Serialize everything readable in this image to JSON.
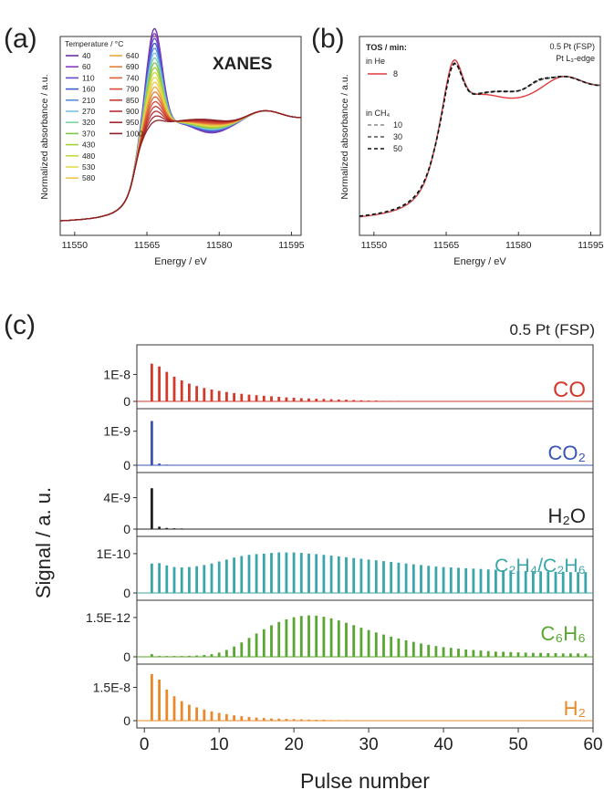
{
  "chart_data": [
    {
      "panel_label": "(a)",
      "type": "line",
      "title": "XANES",
      "xlabel": "Energy / eV",
      "ylabel": "Normalized absorbance / a.u.",
      "xlim": [
        11547,
        11597
      ],
      "x_ticks": [
        11550,
        11565,
        11580,
        11595
      ],
      "grid": false,
      "legend_title": "Temperature / °C",
      "legend_placement": "top-left",
      "series": [
        {
          "name": "40",
          "color": "#6b2fa3"
        },
        {
          "name": "60",
          "color": "#8a3cc4"
        },
        {
          "name": "110",
          "color": "#5b4fd1"
        },
        {
          "name": "160",
          "color": "#3e5cc9"
        },
        {
          "name": "210",
          "color": "#5a8fe0"
        },
        {
          "name": "270",
          "color": "#7fc0e6"
        },
        {
          "name": "320",
          "color": "#7ed2a6"
        },
        {
          "name": "370",
          "color": "#84c44a"
        },
        {
          "name": "430",
          "color": "#a6cf3e"
        },
        {
          "name": "480",
          "color": "#c6d93f"
        },
        {
          "name": "530",
          "color": "#e2dc4a"
        },
        {
          "name": "580",
          "color": "#f0c84c"
        },
        {
          "name": "640",
          "color": "#e8a83e"
        },
        {
          "name": "690",
          "color": "#e2803a"
        },
        {
          "name": "740",
          "color": "#dc6236"
        },
        {
          "name": "790",
          "color": "#d64a35"
        },
        {
          "name": "850",
          "color": "#c93a30"
        },
        {
          "name": "900",
          "color": "#b83030"
        },
        {
          "name": "950",
          "color": "#a2282a"
        },
        {
          "name": "1000",
          "color": "#8a2024"
        }
      ]
    },
    {
      "panel_label": "(b)",
      "type": "line",
      "xlabel": "Energy / eV",
      "ylabel": "Normalized absorbance / a.u.",
      "xlim": [
        11547,
        11597
      ],
      "x_ticks": [
        11550,
        11565,
        11580,
        11595
      ],
      "grid": false,
      "legend_title": "TOS / min:",
      "legend_group1": "in He",
      "legend_group2": "in CH₄",
      "annotation_line1": "0.5 Pt (FSP)",
      "annotation_line2": "Pt L₃-edge",
      "series": [
        {
          "name": "8",
          "color": "#e0393e",
          "dash": "solid"
        },
        {
          "name": "10",
          "color": "#888888",
          "dash": "dashed"
        },
        {
          "name": "30",
          "color": "#555555",
          "dash": "dashed"
        },
        {
          "name": "50",
          "color": "#111111",
          "dash": "dashed"
        }
      ]
    },
    {
      "panel_label": "(c)",
      "type": "bar",
      "title": "0.5 Pt (FSP)",
      "xlabel": "Pulse number",
      "ylabel": "Signal / a. u.",
      "xlim": [
        -1,
        60
      ],
      "x_ticks": [
        0,
        10,
        20,
        30,
        40,
        50,
        60
      ],
      "grid": false,
      "pulses": [
        1,
        2,
        3,
        4,
        5,
        6,
        7,
        8,
        9,
        10,
        11,
        12,
        13,
        14,
        15,
        16,
        17,
        18,
        19,
        20,
        21,
        22,
        23,
        24,
        25,
        26,
        27,
        28,
        29,
        30,
        31,
        32,
        33,
        34,
        35,
        36,
        37,
        38,
        39,
        40,
        41,
        42,
        43,
        44,
        45,
        46,
        47,
        48,
        49,
        50,
        51,
        52,
        53,
        54,
        55,
        56,
        57,
        58,
        59
      ],
      "series": [
        {
          "name": "CO",
          "color": "#d23a2c",
          "ymax": 1.9e-08,
          "tick": 1e-08,
          "tick_label": "1E-8",
          "values": [
            1.4e-08,
            1.3e-08,
            1.1e-08,
            9.2e-09,
            7.8e-09,
            6.6e-09,
            5.7e-09,
            5e-09,
            4.4e-09,
            3.9e-09,
            3.5e-09,
            3.1e-09,
            2.8e-09,
            2.5e-09,
            2.3e-09,
            2.1e-09,
            1.9e-09,
            1.7e-09,
            1.5e-09,
            1.4e-09,
            1.2e-09,
            1.1e-09,
            1e-09,
            9e-10,
            8e-10,
            7e-10,
            6e-10,
            5e-10,
            4e-10,
            3e-10,
            3e-10,
            2e-10,
            2e-10,
            2e-10,
            1e-10,
            1e-10,
            1e-10,
            1e-10,
            1e-10,
            1e-10,
            1e-10,
            1e-10,
            1e-10,
            1e-10,
            1e-10,
            1e-10,
            1e-10,
            1e-10,
            1e-10,
            1e-10,
            1e-10,
            1e-10,
            1e-10,
            1e-10,
            1e-10,
            1e-10,
            1e-10,
            1e-10,
            1e-10
          ]
        },
        {
          "name": "CO₂",
          "color": "#3a55b4",
          "ymax": 1.5e-09,
          "tick": 1e-09,
          "tick_label": "1E-9",
          "values": [
            1.3e-09,
            5e-11,
            2e-11,
            1e-11,
            1e-11,
            1e-11,
            1e-11,
            1e-11,
            1e-11,
            1e-11,
            1e-11,
            1e-11,
            1e-11,
            1e-11,
            1e-11,
            1e-11,
            1e-11,
            1e-11,
            1e-11,
            1e-11,
            1e-11,
            1e-11,
            1e-11,
            1e-11,
            1e-11,
            1e-11,
            1e-11,
            1e-11,
            1e-11,
            1e-11,
            1e-11,
            1e-11,
            1e-11,
            1e-11,
            1e-11,
            1e-11,
            1e-11,
            1e-11,
            1e-11,
            1e-11,
            1e-11,
            1e-11,
            1e-11,
            1e-11,
            1e-11,
            1e-11,
            1e-11,
            1e-11,
            1e-11,
            1e-11,
            1e-11,
            1e-11,
            1e-11,
            1e-11,
            1e-11,
            1e-11,
            1e-11,
            1e-11,
            1e-11
          ]
        },
        {
          "name": "H₂O",
          "color": "#222222",
          "ymax": 6.5e-09,
          "tick": 4e-09,
          "tick_label": "4E-9",
          "values": [
            5.2e-09,
            3e-10,
            1.5e-10,
            1e-10,
            8e-11,
            6e-11,
            5e-11,
            4e-11,
            4e-11,
            3e-11,
            3e-11,
            3e-11,
            3e-11,
            3e-11,
            3e-11,
            3e-11,
            3e-11,
            3e-11,
            3e-11,
            3e-11,
            3e-11,
            3e-11,
            3e-11,
            3e-11,
            3e-11,
            3e-11,
            3e-11,
            3e-11,
            3e-11,
            3e-11,
            3e-11,
            3e-11,
            3e-11,
            3e-11,
            3e-11,
            3e-11,
            3e-11,
            3e-11,
            3e-11,
            3e-11,
            3e-11,
            3e-11,
            3e-11,
            3e-11,
            3e-11,
            3e-11,
            3e-11,
            3e-11,
            3e-11,
            3e-11,
            3e-11,
            3e-11,
            3e-11,
            3e-11,
            3e-11,
            3e-11,
            3e-11,
            3e-11,
            3e-11
          ]
        },
        {
          "name": "C₂H₄/C₂H₆",
          "color": "#3aa6a9",
          "ymax": 1.3e-10,
          "tick": 1e-10,
          "tick_label": "1E-10",
          "values": [
            7.5e-11,
            7.6e-11,
            7e-11,
            6.6e-11,
            6.5e-11,
            6.6e-11,
            6.8e-11,
            7.1e-11,
            7.5e-11,
            8e-11,
            8.5e-11,
            9e-11,
            9.4e-11,
            9.7e-11,
            9.9e-11,
            1e-10,
            1.02e-10,
            1.03e-10,
            1.03e-10,
            1.03e-10,
            1.02e-10,
            1e-10,
            9.9e-11,
            9.7e-11,
            9.5e-11,
            9.3e-11,
            9.1e-11,
            8.9e-11,
            8.7e-11,
            8.5e-11,
            8.3e-11,
            8.1e-11,
            7.9e-11,
            7.7e-11,
            7.5e-11,
            7.3e-11,
            7.1e-11,
            6.9e-11,
            6.7e-11,
            6.6e-11,
            6.5e-11,
            6.4e-11,
            6.3e-11,
            6.2e-11,
            6.1e-11,
            6e-11,
            5.9e-11,
            5.8e-11,
            5.7e-11,
            5.6e-11,
            5.6e-11,
            5.5e-11,
            5.5e-11,
            5.4e-11,
            5.4e-11,
            5.4e-11,
            5.3e-11,
            5.3e-11,
            5.3e-11
          ]
        },
        {
          "name": "C₆H₆",
          "color": "#5aa632",
          "ymax": 1.95e-12,
          "tick": 1.5e-12,
          "tick_label": "1.5E-12",
          "values": [
            1e-13,
            3e-14,
            3e-14,
            3e-14,
            3e-14,
            4e-14,
            5e-14,
            7e-14,
            1e-13,
            1.6e-13,
            2.6e-13,
            3.9e-13,
            5.5e-13,
            7.2e-13,
            8.9e-13,
            1.05e-12,
            1.2e-12,
            1.33e-12,
            1.43e-12,
            1.51e-12,
            1.56e-12,
            1.58e-12,
            1.57e-12,
            1.53e-12,
            1.47e-12,
            1.39e-12,
            1.3e-12,
            1.21e-12,
            1.11e-12,
            1.02e-12,
            9.3e-13,
            8.5e-13,
            7.7e-13,
            7e-13,
            6.3e-13,
            5.7e-13,
            5.1e-13,
            4.6e-13,
            4.1e-13,
            3.7e-13,
            3.4e-13,
            3.1e-13,
            2.8e-13,
            2.6e-13,
            2.4e-13,
            2.2e-13,
            2e-13,
            1.9e-13,
            1.8e-13,
            1.7e-13,
            1.6e-13,
            1.5e-13,
            1.5e-13,
            1.4e-13,
            1.4e-13,
            1.3e-13,
            1.3e-13,
            1.3e-13,
            1.2e-13
          ]
        },
        {
          "name": "H₂",
          "color": "#e8892a",
          "ymax": 2.3e-08,
          "tick": 1.5e-08,
          "tick_label": "1.5E-8",
          "values": [
            2.1e-08,
            1.85e-08,
            1.4e-08,
            1.1e-08,
            8.8e-09,
            7.2e-09,
            6e-09,
            5e-09,
            4.2e-09,
            3.5e-09,
            2.9e-09,
            2.4e-09,
            2e-09,
            1.7e-09,
            1.4e-09,
            1.2e-09,
            1e-09,
            9e-10,
            8e-10,
            7e-10,
            6e-10,
            5e-10,
            4e-10,
            4e-10,
            3e-10,
            3e-10,
            3e-10,
            2e-10,
            2e-10,
            2e-10,
            2e-10,
            2e-10,
            2e-10,
            2e-10,
            2e-10,
            2e-10,
            2e-10,
            2e-10,
            2e-10,
            2e-10,
            2e-10,
            2e-10,
            2e-10,
            2e-10,
            2e-10,
            2e-10,
            2e-10,
            2e-10,
            2e-10,
            2e-10,
            2e-10,
            2e-10,
            2e-10,
            2e-10,
            2e-10,
            2e-10,
            2e-10,
            2e-10,
            2e-10
          ]
        }
      ],
      "zero_label": "0"
    }
  ]
}
